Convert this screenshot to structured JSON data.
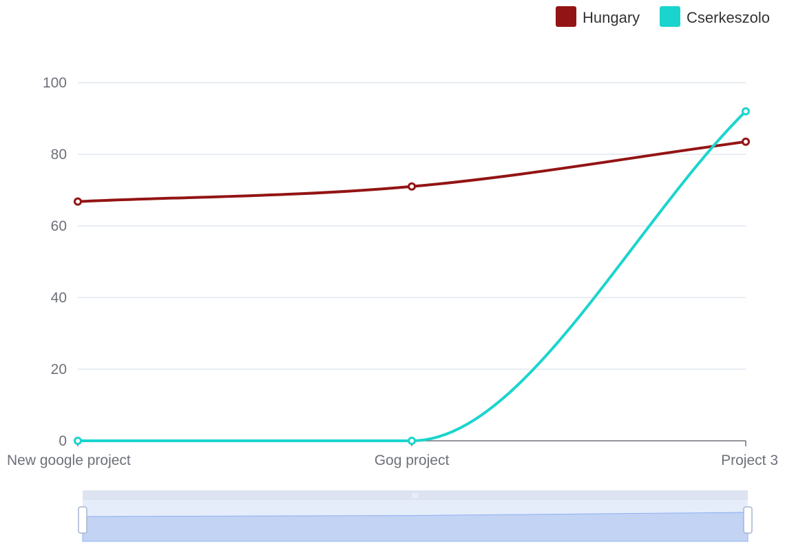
{
  "chart_data": {
    "type": "line",
    "smooth": true,
    "categories": [
      "New google project",
      "Gog project",
      "Project 3"
    ],
    "series": [
      {
        "name": "Hungary",
        "color": "#931414",
        "values": [
          66.8,
          71,
          83.5
        ]
      },
      {
        "name": "Cserkeszolo",
        "color": "#1bd4ce",
        "values": [
          0,
          0,
          92
        ]
      }
    ],
    "y_ticks": [
      "0",
      "20",
      "40",
      "60",
      "80",
      "100"
    ],
    "ylim": [
      0,
      100
    ],
    "grid": true,
    "legend_position": "top-right",
    "data_zoom": {
      "visible": true,
      "range": [
        0,
        100
      ],
      "handle_label": "III"
    }
  }
}
